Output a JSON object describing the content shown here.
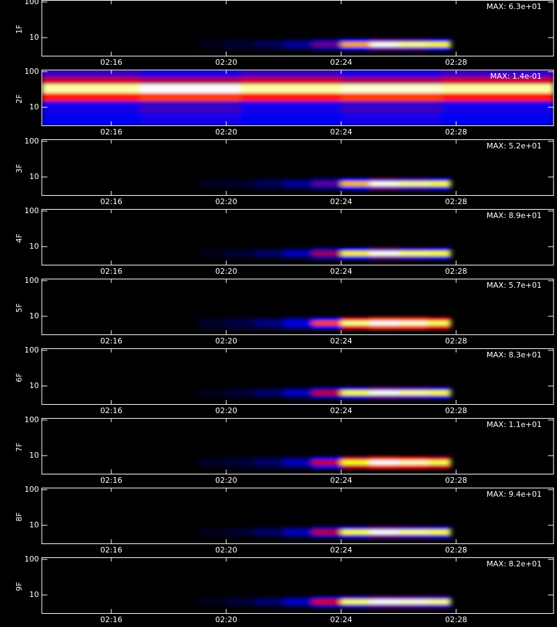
{
  "chart_data": [
    {
      "type": "heatmap",
      "ylabel": "1F",
      "annotation": "MAX: 6.3e+01",
      "log_y": true,
      "xlim": [
        13.58,
        31.39
      ],
      "xticks": [
        {
          "value": 16,
          "label": "02:16"
        },
        {
          "value": 20,
          "label": "02:20"
        },
        {
          "value": 24,
          "label": "02:24"
        },
        {
          "value": 28,
          "label": "02:28"
        }
      ],
      "ylim": [
        3.1,
        114
      ],
      "yticks": [
        10,
        100
      ],
      "xbins": [
        19,
        20,
        21,
        22,
        23,
        24,
        25,
        26,
        27,
        27.8
      ],
      "ybins": [
        4.2,
        5.5,
        7.5,
        9.5
      ],
      "z": [
        [
          1,
          2,
          3,
          5,
          10,
          18,
          25,
          24,
          20
        ],
        [
          2,
          4,
          7,
          12,
          25,
          45,
          63,
          58,
          50
        ],
        [
          1,
          2,
          3,
          5,
          10,
          18,
          25,
          24,
          20
        ]
      ]
    },
    {
      "type": "heatmap",
      "ylabel": "2F",
      "annotation": "MAX: 1.4e-01",
      "log_y": true,
      "xlim": [
        13.58,
        31.39
      ],
      "xticks": [
        {
          "value": 16,
          "label": "02:16"
        },
        {
          "value": 20,
          "label": "02:20"
        },
        {
          "value": 24,
          "label": "02:24"
        },
        {
          "value": 28,
          "label": "02:28"
        }
      ],
      "ylim": [
        3.1,
        114
      ],
      "yticks": [
        10,
        100
      ],
      "xbins": [
        13.58,
        17,
        20.5,
        24,
        27.5,
        31.39
      ],
      "ybins": [
        3.1,
        7,
        15,
        25,
        45,
        70,
        114
      ],
      "z": [
        [
          0.04,
          0.045,
          0.04,
          0.045,
          0.04
        ],
        [
          0.045,
          0.05,
          0.045,
          0.05,
          0.045
        ],
        [
          0.08,
          0.085,
          0.08,
          0.085,
          0.08
        ],
        [
          0.13,
          0.14,
          0.13,
          0.135,
          0.13
        ],
        [
          0.07,
          0.065,
          0.07,
          0.065,
          0.07
        ],
        [
          0.05,
          0.045,
          0.05,
          0.045,
          0.05
        ]
      ]
    },
    {
      "type": "heatmap",
      "ylabel": "3F",
      "annotation": "MAX: 5.2e+01",
      "log_y": true,
      "xlim": [
        13.58,
        31.39
      ],
      "xticks": [
        {
          "value": 16,
          "label": "02:16"
        },
        {
          "value": 20,
          "label": "02:20"
        },
        {
          "value": 24,
          "label": "02:24"
        },
        {
          "value": 28,
          "label": "02:28"
        }
      ],
      "ylim": [
        3.1,
        114
      ],
      "yticks": [
        10,
        100
      ],
      "xbins": [
        19,
        20,
        21,
        22,
        23,
        24,
        25,
        26,
        27,
        27.8
      ],
      "ybins": [
        4.2,
        5.5,
        7.5,
        9.5
      ],
      "z": [
        [
          1,
          1.5,
          2.5,
          4,
          8,
          15,
          21,
          19,
          17
        ],
        [
          2,
          3,
          6,
          10,
          20,
          38,
          52,
          48,
          42
        ],
        [
          1,
          1.5,
          2.5,
          4,
          8,
          15,
          21,
          19,
          17
        ]
      ]
    },
    {
      "type": "heatmap",
      "ylabel": "4F",
      "annotation": "MAX: 8.9e+01",
      "log_y": true,
      "xlim": [
        13.58,
        31.39
      ],
      "xticks": [
        {
          "value": 16,
          "label": "02:16"
        },
        {
          "value": 20,
          "label": "02:20"
        },
        {
          "value": 24,
          "label": "02:24"
        },
        {
          "value": 28,
          "label": "02:28"
        }
      ],
      "ylim": [
        3.1,
        114
      ],
      "yticks": [
        10,
        100
      ],
      "xbins": [
        19,
        20,
        21,
        22,
        23,
        24,
        25,
        26,
        27,
        27.8
      ],
      "ybins": [
        4.2,
        5.5,
        7.5,
        9.5
      ],
      "z": [
        [
          1,
          2,
          4,
          8,
          16,
          28,
          36,
          32,
          29
        ],
        [
          3,
          6,
          11,
          20,
          40,
          70,
          89,
          80,
          72
        ],
        [
          1,
          2,
          4,
          8,
          16,
          28,
          36,
          32,
          29
        ]
      ]
    },
    {
      "type": "heatmap",
      "ylabel": "5F",
      "annotation": "MAX: 5.7e+01",
      "log_y": true,
      "xlim": [
        13.58,
        31.39
      ],
      "xticks": [
        {
          "value": 16,
          "label": "02:16"
        },
        {
          "value": 20,
          "label": "02:20"
        },
        {
          "value": 24,
          "label": "02:24"
        },
        {
          "value": 28,
          "label": "02:28"
        }
      ],
      "ylim": [
        3.1,
        114
      ],
      "yticks": [
        10,
        100
      ],
      "xbins": [
        19,
        20,
        21,
        22,
        23,
        24,
        25,
        26,
        27,
        27.8
      ],
      "ybins": [
        4.2,
        5.5,
        7.5,
        9.5
      ],
      "z": [
        [
          2,
          3,
          5,
          9,
          18,
          30,
          35,
          34,
          30
        ],
        [
          3,
          5,
          9,
          16,
          35,
          52,
          57,
          55,
          50
        ],
        [
          2,
          3,
          5,
          9,
          18,
          30,
          35,
          34,
          30
        ]
      ]
    },
    {
      "type": "heatmap",
      "ylabel": "6F",
      "annotation": "MAX: 8.3e+01",
      "log_y": true,
      "xlim": [
        13.58,
        31.39
      ],
      "xticks": [
        {
          "value": 16,
          "label": "02:16"
        },
        {
          "value": 20,
          "label": "02:20"
        },
        {
          "value": 24,
          "label": "02:24"
        },
        {
          "value": 28,
          "label": "02:28"
        }
      ],
      "ylim": [
        3.1,
        114
      ],
      "yticks": [
        10,
        100
      ],
      "xbins": [
        19,
        20,
        21,
        22,
        23,
        24,
        25,
        26,
        27,
        27.8
      ],
      "ybins": [
        4.2,
        5.5,
        7.5,
        9.5
      ],
      "z": [
        [
          1,
          2,
          4,
          8,
          16,
          28,
          33,
          31,
          28
        ],
        [
          3,
          6,
          11,
          20,
          40,
          70,
          83,
          78,
          70
        ],
        [
          1,
          2,
          4,
          8,
          16,
          28,
          33,
          31,
          28
        ]
      ]
    },
    {
      "type": "heatmap",
      "ylabel": "7F",
      "annotation": "MAX: 1.1e+01",
      "log_y": true,
      "xlim": [
        13.58,
        31.39
      ],
      "xticks": [
        {
          "value": 16,
          "label": "02:16"
        },
        {
          "value": 20,
          "label": "02:20"
        },
        {
          "value": 24,
          "label": "02:24"
        },
        {
          "value": 28,
          "label": "02:28"
        }
      ],
      "ylim": [
        3.1,
        114
      ],
      "yticks": [
        10,
        100
      ],
      "xbins": [
        19,
        20,
        21,
        22,
        23,
        24,
        25,
        26,
        27,
        27.8
      ],
      "ybins": [
        4.2,
        5.5,
        7.5,
        9.5
      ],
      "z": [
        [
          0.3,
          0.5,
          0.8,
          1.4,
          3,
          5.5,
          6.5,
          6,
          5.5
        ],
        [
          0.5,
          0.8,
          1.4,
          2.5,
          5.5,
          9,
          11,
          10.5,
          9.5
        ],
        [
          0.3,
          0.5,
          0.8,
          1.4,
          3,
          5.5,
          6.5,
          6,
          5.5
        ]
      ]
    },
    {
      "type": "heatmap",
      "ylabel": "8F",
      "annotation": "MAX: 9.4e+01",
      "log_y": true,
      "xlim": [
        13.58,
        31.39
      ],
      "xticks": [
        {
          "value": 16,
          "label": "02:16"
        },
        {
          "value": 20,
          "label": "02:20"
        },
        {
          "value": 24,
          "label": "02:24"
        },
        {
          "value": 28,
          "label": "02:28"
        }
      ],
      "ylim": [
        3.1,
        114
      ],
      "yticks": [
        10,
        100
      ],
      "xbins": [
        19,
        20,
        21,
        22,
        23,
        24,
        25,
        26,
        27,
        27.8
      ],
      "ybins": [
        4.2,
        5.5,
        7.5,
        9.5
      ],
      "z": [
        [
          1,
          2,
          5,
          9,
          18,
          32,
          38,
          35,
          32
        ],
        [
          3,
          6,
          12,
          22,
          45,
          80,
          94,
          88,
          80
        ],
        [
          1,
          2,
          5,
          9,
          18,
          32,
          38,
          35,
          32
        ]
      ]
    },
    {
      "type": "heatmap",
      "ylabel": "9F",
      "annotation": "MAX: 8.2e+01",
      "log_y": true,
      "xlim": [
        13.58,
        31.39
      ],
      "xticks": [
        {
          "value": 16,
          "label": "02:16"
        },
        {
          "value": 20,
          "label": "02:20"
        },
        {
          "value": 24,
          "label": "02:24"
        },
        {
          "value": 28,
          "label": "02:28"
        }
      ],
      "ylim": [
        3.1,
        114
      ],
      "yticks": [
        10,
        100
      ],
      "xbins": [
        19,
        20,
        21,
        22,
        23,
        24,
        25,
        26,
        27,
        27.8
      ],
      "ybins": [
        4.2,
        5.5,
        7.5,
        9.5
      ],
      "z": [
        [
          1,
          2,
          4,
          8,
          17,
          29,
          33,
          32,
          30
        ],
        [
          3,
          6,
          11,
          20,
          42,
          72,
          82,
          80,
          75
        ],
        [
          1,
          2,
          4,
          8,
          17,
          29,
          33,
          32,
          30
        ]
      ]
    }
  ]
}
